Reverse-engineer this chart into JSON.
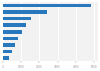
{
  "values": [
    4823,
    2438,
    1560,
    1290,
    1050,
    820,
    650,
    480,
    350
  ],
  "bar_color": "#2878be",
  "background_color": "#ffffff",
  "plot_bg_color": "#f2f2f2",
  "xlim": [
    0,
    5200
  ],
  "grid_color": "#ffffff",
  "bar_height": 0.55,
  "x_tick_interval": 1000
}
